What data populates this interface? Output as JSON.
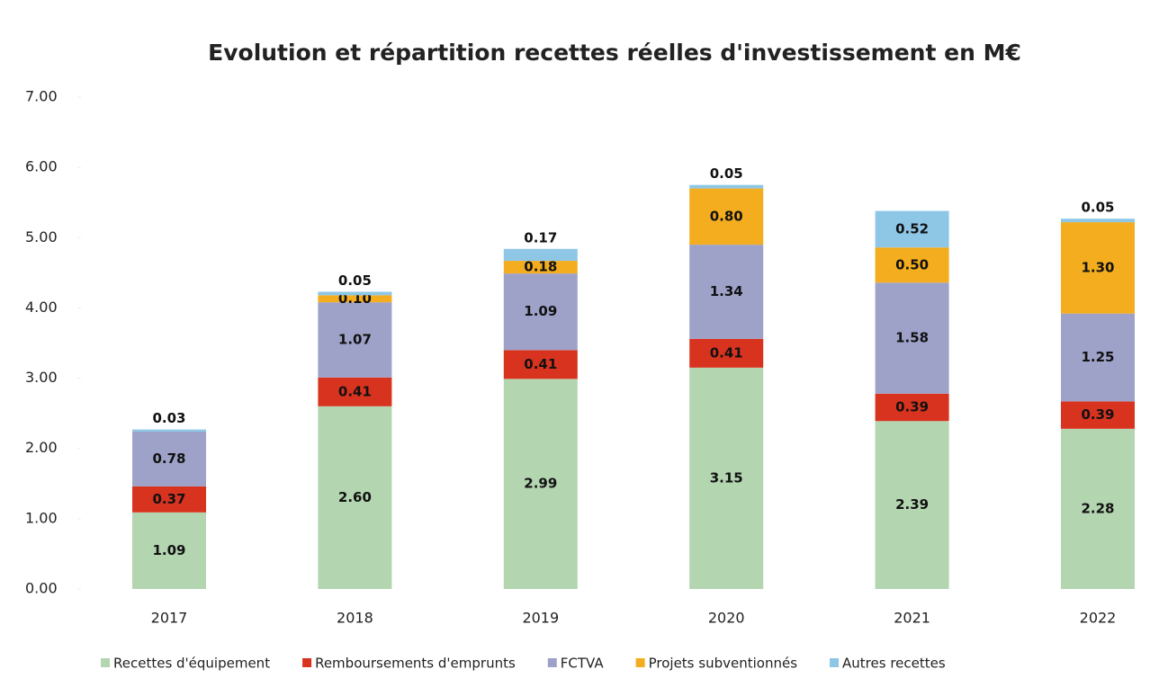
{
  "chart_data": {
    "type": "stacked_bar",
    "title": "Evolution et répartition recettes réelles d'investissement en M€",
    "categories": [
      "2017",
      "2018",
      "2019",
      "2020",
      "2021",
      "2022"
    ],
    "series": [
      {
        "name": "Recettes d'équipement",
        "color": "#b3d5b0",
        "values": [
          1.09,
          2.6,
          2.99,
          3.15,
          2.39,
          2.28
        ],
        "value_labels": [
          "1.09",
          "2.60",
          "2.99",
          "3.15",
          "2.39",
          "2.28"
        ]
      },
      {
        "name": "Remboursements d'emprunts",
        "color": "#d8331f",
        "values": [
          0.37,
          0.41,
          0.41,
          0.41,
          0.39,
          0.39
        ],
        "value_labels": [
          "0.37",
          "0.41",
          "0.41",
          "0.41",
          "0.39",
          "0.39"
        ]
      },
      {
        "name": "FCTVA",
        "color": "#9ea2c9",
        "values": [
          0.78,
          1.07,
          1.09,
          1.34,
          1.58,
          1.25
        ],
        "value_labels": [
          "0.78",
          "1.07",
          "1.09",
          "1.34",
          "1.58",
          "1.25"
        ]
      },
      {
        "name": "Projets subventionnés",
        "color": "#f4ad1e",
        "values": [
          null,
          0.1,
          0.18,
          0.8,
          0.5,
          1.3
        ],
        "value_labels": [
          null,
          "0.10",
          "0.18",
          "0.80",
          "0.50",
          "1.30"
        ]
      },
      {
        "name": "Autres recettes",
        "color": "#8ec7e6",
        "values": [
          0.03,
          0.05,
          0.17,
          0.05,
          0.52,
          0.05
        ],
        "value_labels": [
          "0.03",
          "0.05",
          "0.17",
          "0.05",
          "0.52",
          "0.05"
        ]
      }
    ],
    "ylim": [
      0,
      7
    ],
    "yticks": [
      {
        "value": 0,
        "label": "0.00"
      },
      {
        "value": 1,
        "label": "1.00"
      },
      {
        "value": 2,
        "label": "2.00"
      },
      {
        "value": 3,
        "label": "3.00"
      },
      {
        "value": 4,
        "label": "4.00"
      },
      {
        "value": 5,
        "label": "5.00"
      },
      {
        "value": 6,
        "label": "6.00"
      },
      {
        "value": 7,
        "label": "7.00"
      }
    ],
    "legend": "bottom"
  }
}
